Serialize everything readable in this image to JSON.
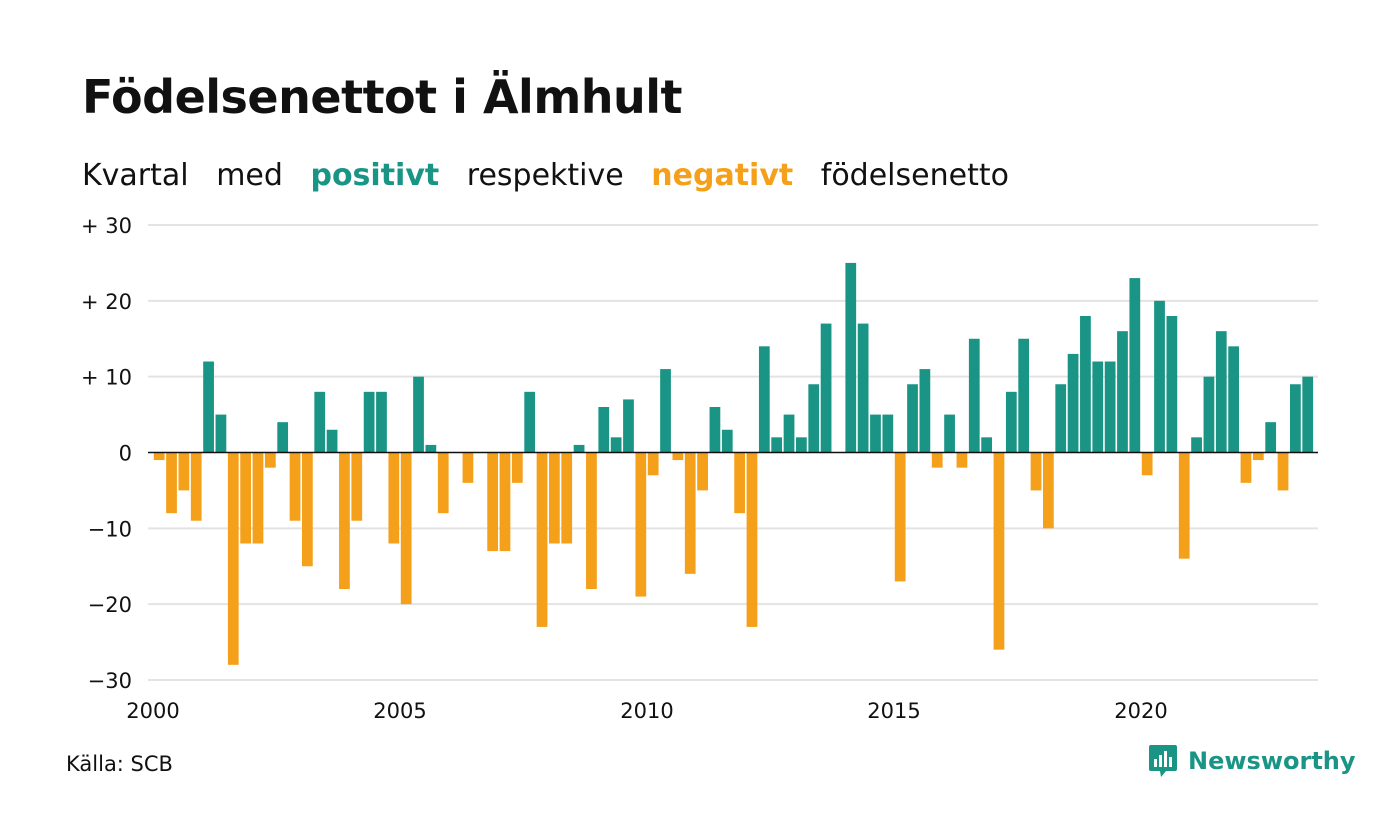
{
  "title": "Födelsenettot i Älmhult",
  "subtitle": {
    "part1": "Kvartal",
    "part2": "med",
    "positive": "positivt",
    "part3": "respektive",
    "negative": "negativt",
    "part4": "födelsenetto"
  },
  "source": "Källa: SCB",
  "brand": "Newsworthy",
  "colors": {
    "positive": "#1a9485",
    "negative": "#f5a01a",
    "grid": "#e3e3e3",
    "zero_line": "#111111",
    "text": "#111111"
  },
  "chart_data": {
    "type": "bar",
    "x_start": "2000 Q1",
    "ylim": [
      -30,
      30
    ],
    "yticks": [
      {
        "value": 30,
        "label": "+ 30"
      },
      {
        "value": 20,
        "label": "+ 20"
      },
      {
        "value": 10,
        "label": "+ 10"
      },
      {
        "value": 0,
        "label": "0"
      },
      {
        "value": -10,
        "label": "−10"
      },
      {
        "value": -20,
        "label": "−20"
      },
      {
        "value": -30,
        "label": "−30"
      }
    ],
    "xticks": [
      {
        "year": 2000,
        "label": "2000"
      },
      {
        "year": 2005,
        "label": "2005"
      },
      {
        "year": 2010,
        "label": "2010"
      },
      {
        "year": 2015,
        "label": "2015"
      },
      {
        "year": 2020,
        "label": "2020"
      }
    ],
    "grid": true,
    "values": [
      -1,
      -8,
      -5,
      -9,
      12,
      5,
      -28,
      -12,
      -12,
      -2,
      4,
      -9,
      -15,
      8,
      3,
      -18,
      -9,
      8,
      8,
      -12,
      -20,
      10,
      1,
      -8,
      0,
      -4,
      0,
      -13,
      -13,
      -4,
      8,
      -23,
      -12,
      -12,
      1,
      -18,
      6,
      2,
      7,
      -19,
      -3,
      11,
      -1,
      -16,
      -5,
      6,
      3,
      -8,
      -23,
      14,
      2,
      5,
      2,
      9,
      17,
      0,
      25,
      17,
      5,
      5,
      -17,
      9,
      11,
      -2,
      5,
      -2,
      15,
      2,
      -26,
      8,
      15,
      -5,
      -10,
      9,
      13,
      18,
      12,
      12,
      16,
      23,
      -3,
      20,
      18,
      -14,
      2,
      10,
      16,
      14,
      -4,
      -1,
      4,
      -5,
      9,
      10
    ]
  }
}
